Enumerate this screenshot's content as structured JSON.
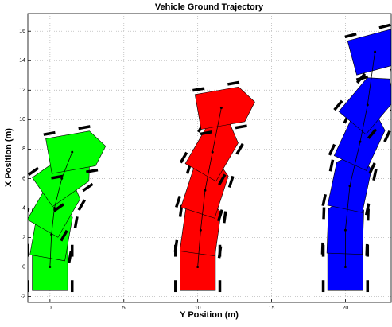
{
  "chart_data": {
    "type": "trajectory",
    "title": "Vehicle Ground Trajectory",
    "x_label": "Y Position (m)",
    "y_label": "X Position (m)",
    "xlim": [
      -1.5,
      23.1
    ],
    "ylim": [
      -2.4,
      17.2
    ],
    "xticks": [
      0,
      5,
      10,
      15,
      20
    ],
    "yticks": [
      -2,
      0,
      2,
      4,
      6,
      8,
      10,
      12,
      14,
      16
    ],
    "grid": true,
    "series": [
      {
        "color": "#00ff00",
        "x": [
          0,
          0.1,
          0.3,
          0.8,
          1.5
        ],
        "values": [
          0,
          2.2,
          4,
          6,
          7.8
        ],
        "heading": [
          0,
          10,
          30,
          55,
          80
        ]
      },
      {
        "color": "#ff0000",
        "x": [
          10,
          10.2,
          10.5,
          11,
          11.6
        ],
        "values": [
          0,
          2.5,
          5.2,
          7.8,
          10.8
        ],
        "heading": [
          0,
          8,
          18,
          30,
          80
        ]
      },
      {
        "color": "#0000ff",
        "x": [
          20,
          20,
          20.3,
          21,
          21.5,
          22
        ],
        "values": [
          0,
          2.5,
          5.5,
          8.5,
          11,
          14.6
        ],
        "heading": [
          0,
          2,
          12,
          25,
          40,
          75
        ]
      }
    ]
  }
}
